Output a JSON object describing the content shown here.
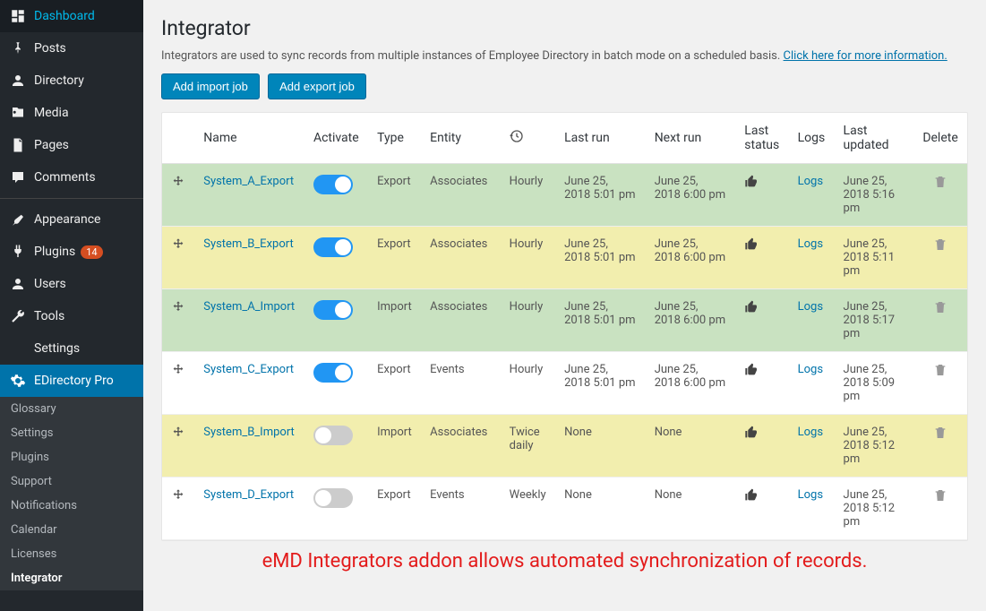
{
  "sidebar": {
    "items": [
      {
        "label": "Dashboard",
        "icon": "dashboard"
      },
      {
        "label": "Posts",
        "icon": "pin"
      },
      {
        "label": "Directory",
        "icon": "person"
      },
      {
        "label": "Media",
        "icon": "media"
      },
      {
        "label": "Pages",
        "icon": "page"
      },
      {
        "label": "Comments",
        "icon": "comment"
      }
    ],
    "items2": [
      {
        "label": "Appearance",
        "icon": "brush"
      },
      {
        "label": "Plugins",
        "icon": "plug",
        "badge": "14"
      },
      {
        "label": "Users",
        "icon": "user"
      },
      {
        "label": "Tools",
        "icon": "wrench"
      },
      {
        "label": "Settings",
        "icon": "settings"
      }
    ],
    "active": {
      "label": "EDirectory Pro",
      "icon": "gear"
    },
    "submenu": [
      "Glossary",
      "Settings",
      "Plugins",
      "Support",
      "Notifications",
      "Calendar",
      "Licenses",
      "Integrator"
    ]
  },
  "page": {
    "title": "Integrator",
    "desc": "Integrators are used to sync records from multiple instances of Employee Directory in batch mode on a scheduled basis. ",
    "desc_link": "Click here for more information.",
    "btn_import": "Add import job",
    "btn_export": "Add export job",
    "footer": "eMD Integrators addon allows automated synchronization of records."
  },
  "table": {
    "headers": {
      "name": "Name",
      "activate": "Activate",
      "type": "Type",
      "entity": "Entity",
      "lastrun": "Last run",
      "nextrun": "Next run",
      "laststatus": "Last status",
      "logs": "Logs",
      "lastupdated": "Last updated",
      "delete": "Delete"
    },
    "rows": [
      {
        "name": "System_A_Export",
        "active": true,
        "type": "Export",
        "entity": "Associates",
        "sched": "Hourly",
        "lastrun": "June 25, 2018 5:01 pm",
        "nextrun": "June 25, 2018 6:00 pm",
        "logs": "Logs",
        "updated": "June 25, 2018 5:16 pm",
        "rowclass": "row-green"
      },
      {
        "name": "System_B_Export",
        "active": true,
        "type": "Export",
        "entity": "Associates",
        "sched": "Hourly",
        "lastrun": "June 25, 2018 5:01 pm",
        "nextrun": "June 25, 2018 6:00 pm",
        "logs": "Logs",
        "updated": "June 25, 2018 5:11 pm",
        "rowclass": "row-yellow"
      },
      {
        "name": "System_A_Import",
        "active": true,
        "type": "Import",
        "entity": "Associates",
        "sched": "Hourly",
        "lastrun": "June 25, 2018 5:01 pm",
        "nextrun": "June 25, 2018 6:00 pm",
        "logs": "Logs",
        "updated": "June 25, 2018 5:17 pm",
        "rowclass": "row-green"
      },
      {
        "name": "System_C_Export",
        "active": true,
        "type": "Export",
        "entity": "Events",
        "sched": "Hourly",
        "lastrun": "June 25, 2018 5:01 pm",
        "nextrun": "June 25, 2018 6:00 pm",
        "logs": "Logs",
        "updated": "June 25, 2018 5:09 pm",
        "rowclass": "row-white"
      },
      {
        "name": "System_B_Import",
        "active": false,
        "type": "Import",
        "entity": "Associates",
        "sched": "Twice daily",
        "lastrun": "None",
        "nextrun": "None",
        "logs": "Logs",
        "updated": "June 25, 2018 5:12 pm",
        "rowclass": "row-yellow"
      },
      {
        "name": "System_D_Export",
        "active": false,
        "type": "Export",
        "entity": "Events",
        "sched": "Weekly",
        "lastrun": "None",
        "nextrun": "None",
        "logs": "Logs",
        "updated": "June 25, 2018 5:12 pm",
        "rowclass": "row-white"
      }
    ]
  },
  "colors": {
    "row_green": "#c9e2c1",
    "row_yellow": "#f2eeae",
    "accent": "#0073aa",
    "toggle_on": "#2196f3",
    "footer_red": "#e31b1b"
  }
}
